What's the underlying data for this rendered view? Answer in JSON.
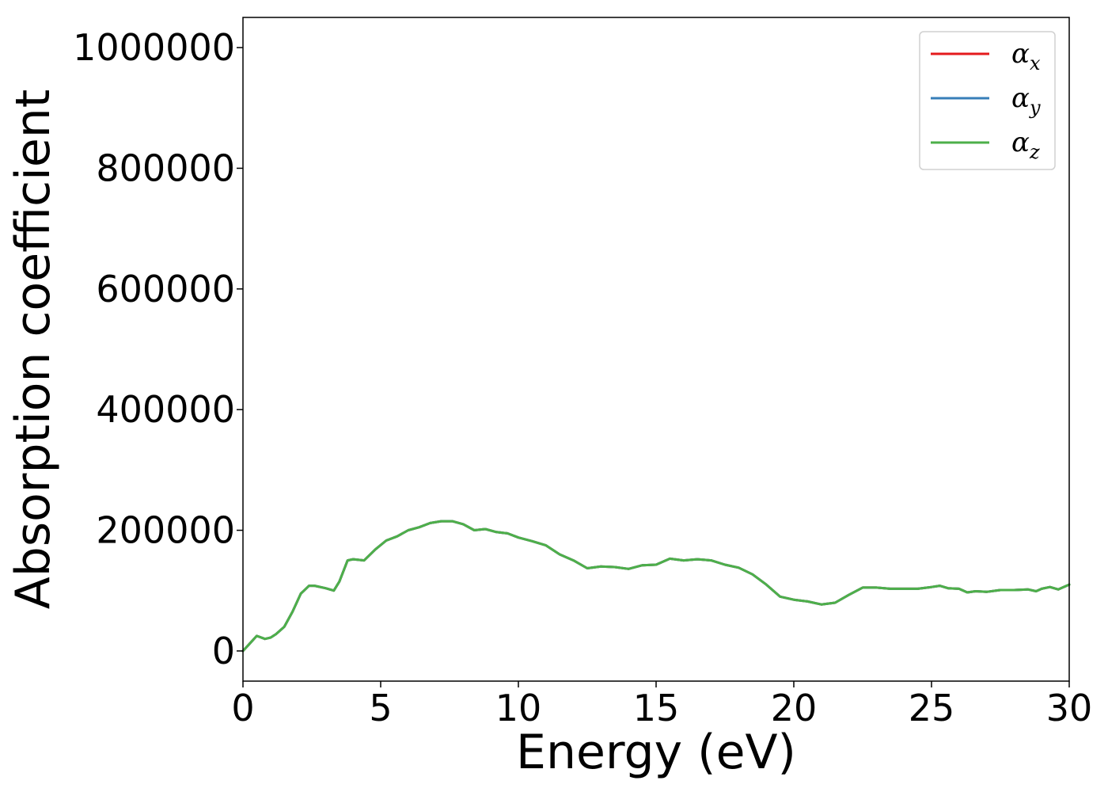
{
  "chart_data": {
    "type": "line",
    "title": "",
    "xlabel": "Energy (eV)",
    "ylabel": "Absorption coefficient",
    "xlim": [
      0,
      30
    ],
    "ylim": [
      -50000,
      1050000
    ],
    "xticks": [
      0,
      5,
      10,
      15,
      20,
      25,
      30
    ],
    "yticks": [
      0,
      200000,
      400000,
      600000,
      800000,
      1000000
    ],
    "grid": false,
    "legend": {
      "position": "top-right"
    },
    "x": [
      0,
      0.2,
      0.5,
      0.8,
      1.0,
      1.2,
      1.5,
      1.8,
      2.1,
      2.4,
      2.6,
      3.0,
      3.3,
      3.5,
      3.8,
      4.0,
      4.4,
      4.8,
      5.2,
      5.6,
      6.0,
      6.4,
      6.8,
      7.2,
      7.6,
      8.0,
      8.4,
      8.8,
      9.2,
      9.6,
      10.0,
      10.5,
      11.0,
      11.5,
      12.0,
      12.5,
      13.0,
      13.5,
      14.0,
      14.5,
      15.0,
      15.5,
      16.0,
      16.5,
      17.0,
      17.5,
      18.0,
      18.5,
      19.0,
      19.5,
      20.0,
      20.5,
      21.0,
      21.5,
      22.0,
      22.5,
      23.0,
      23.5,
      24.0,
      24.5,
      25.0,
      25.3,
      25.6,
      26.0,
      26.3,
      26.6,
      27.0,
      27.5,
      28.0,
      28.5,
      28.8,
      29.0,
      29.3,
      29.6,
      30.0
    ],
    "series": [
      {
        "name": "α_x",
        "display": "α",
        "sub": "x",
        "color": "#e41a1c",
        "values": [
          0,
          10000,
          25000,
          20000,
          22000,
          28000,
          40000,
          65000,
          95000,
          108000,
          108000,
          104000,
          100000,
          115000,
          150000,
          152000,
          150000,
          168000,
          183000,
          190000,
          200000,
          205000,
          212000,
          215000,
          215000,
          210000,
          200000,
          202000,
          197000,
          195000,
          188000,
          182000,
          175000,
          160000,
          150000,
          137000,
          140000,
          139000,
          136000,
          142000,
          143000,
          153000,
          150000,
          152000,
          150000,
          143000,
          138000,
          127000,
          110000,
          90000,
          85000,
          82000,
          77000,
          80000,
          93000,
          105000,
          105000,
          103000,
          103000,
          103000,
          106000,
          108000,
          104000,
          103000,
          97000,
          99000,
          98000,
          101000,
          101000,
          102000,
          99000,
          103000,
          106000,
          102000,
          110000
        ]
      },
      {
        "name": "α_y",
        "display": "α",
        "sub": "y",
        "color": "#377eb8",
        "values": [
          0,
          10000,
          25000,
          20000,
          22000,
          28000,
          40000,
          65000,
          95000,
          108000,
          108000,
          104000,
          100000,
          115000,
          150000,
          152000,
          150000,
          168000,
          183000,
          190000,
          200000,
          205000,
          212000,
          215000,
          215000,
          210000,
          200000,
          202000,
          197000,
          195000,
          188000,
          182000,
          175000,
          160000,
          150000,
          137000,
          140000,
          139000,
          136000,
          142000,
          143000,
          153000,
          150000,
          152000,
          150000,
          143000,
          138000,
          127000,
          110000,
          90000,
          85000,
          82000,
          77000,
          80000,
          93000,
          105000,
          105000,
          103000,
          103000,
          103000,
          106000,
          108000,
          104000,
          103000,
          97000,
          99000,
          98000,
          101000,
          101000,
          102000,
          99000,
          103000,
          106000,
          102000,
          110000
        ]
      },
      {
        "name": "α_z",
        "display": "α",
        "sub": "z",
        "color": "#4daf4a",
        "values": [
          0,
          10000,
          25000,
          20000,
          22000,
          28000,
          40000,
          65000,
          95000,
          108000,
          108000,
          104000,
          100000,
          115000,
          150000,
          152000,
          150000,
          168000,
          183000,
          190000,
          200000,
          205000,
          212000,
          215000,
          215000,
          210000,
          200000,
          202000,
          197000,
          195000,
          188000,
          182000,
          175000,
          160000,
          150000,
          137000,
          140000,
          139000,
          136000,
          142000,
          143000,
          153000,
          150000,
          152000,
          150000,
          143000,
          138000,
          127000,
          110000,
          90000,
          85000,
          82000,
          77000,
          80000,
          93000,
          105000,
          105000,
          103000,
          103000,
          103000,
          106000,
          108000,
          104000,
          103000,
          97000,
          99000,
          98000,
          101000,
          101000,
          102000,
          99000,
          103000,
          106000,
          102000,
          110000
        ]
      }
    ]
  }
}
